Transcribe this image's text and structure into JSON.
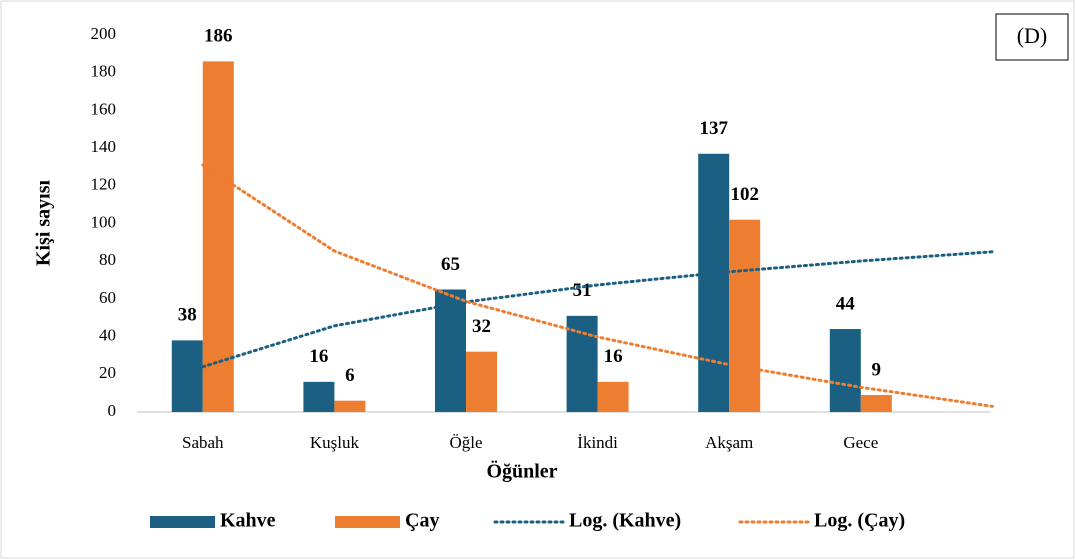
{
  "chart_data": {
    "type": "bar",
    "annotation": "(D)",
    "y_label": "Kişi sayısı",
    "x_label": "Öğünler",
    "categories": [
      "Sabah",
      "Kuşluk",
      "Öğle",
      "İkindi",
      "Akşam",
      "Gece"
    ],
    "series": [
      {
        "name": "Kahve",
        "color": "#1b6082",
        "values": [
          38,
          16,
          65,
          51,
          137,
          44
        ]
      },
      {
        "name": "Çay",
        "color": "#ed7d31",
        "values": [
          186,
          6,
          32,
          16,
          102,
          9
        ]
      }
    ],
    "trendlines": [
      {
        "name": "Log. (Kahve)",
        "color": "#1b6082",
        "x": [
          1,
          2,
          3,
          4,
          5,
          6,
          7
        ],
        "values": [
          24,
          45.7,
          58.4,
          67.4,
          74.4,
          80.1,
          85
        ]
      },
      {
        "name": "Log. (Çay)",
        "color": "#ed7d31",
        "x": [
          1,
          2,
          3,
          4,
          5,
          6,
          7
        ],
        "values": [
          131,
          85.4,
          58.7,
          39.8,
          25.1,
          13.1,
          3
        ]
      }
    ],
    "ylim": [
      0,
      200
    ],
    "yticks": [
      0,
      20,
      40,
      60,
      80,
      100,
      120,
      140,
      160,
      180,
      200
    ],
    "grid": false,
    "legend": "bottom"
  }
}
